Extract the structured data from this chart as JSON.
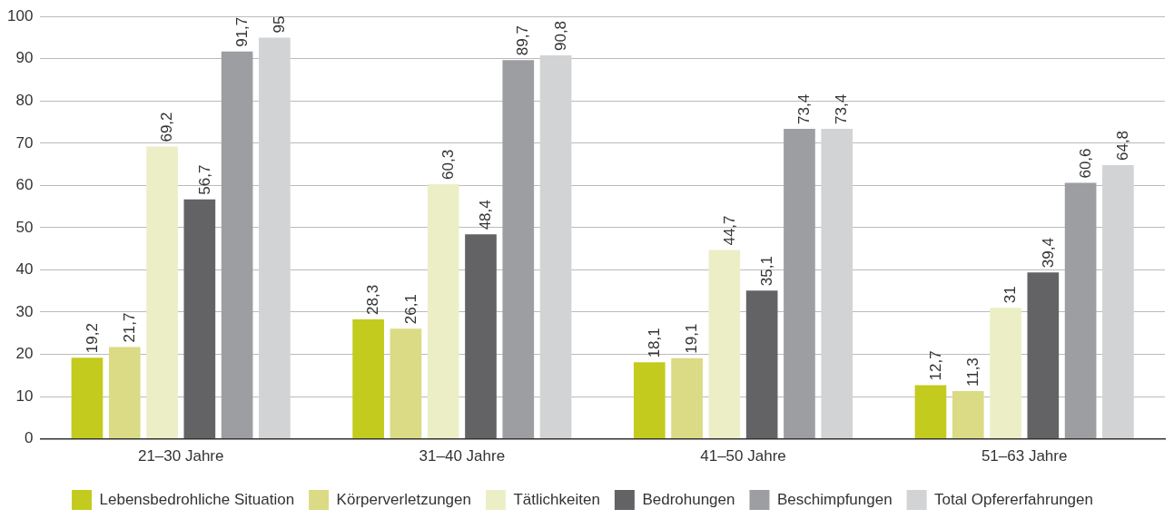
{
  "chart_data": {
    "type": "bar",
    "categories": [
      "21–30 Jahre",
      "31–40 Jahre",
      "41–50 Jahre",
      "51–63 Jahre"
    ],
    "series": [
      {
        "name": "Lebensbedrohliche Situation",
        "color": "#c3cb1f",
        "values": [
          19.2,
          28.3,
          18.1,
          12.7
        ],
        "value_labels": [
          "19,2",
          "28,3",
          "18,1",
          "12,7"
        ]
      },
      {
        "name": "Körperverletzungen",
        "color": "#dadb84",
        "values": [
          21.7,
          26.1,
          19.1,
          11.3
        ],
        "value_labels": [
          "21,7",
          "26,1",
          "19,1",
          "11,3"
        ]
      },
      {
        "name": "Tätlichkeiten",
        "color": "#ecefc6",
        "values": [
          69.2,
          60.3,
          44.7,
          31
        ],
        "value_labels": [
          "69,2",
          "60,3",
          "44,7",
          "31"
        ]
      },
      {
        "name": "Bedrohungen",
        "color": "#636365",
        "values": [
          56.7,
          48.4,
          35.1,
          39.4
        ],
        "value_labels": [
          "56,7",
          "48,4",
          "35,1",
          "39,4"
        ]
      },
      {
        "name": "Beschimpfungen",
        "color": "#9d9ea2",
        "values": [
          91.7,
          89.7,
          73.4,
          60.6
        ],
        "value_labels": [
          "91,7",
          "89,7",
          "73,4",
          "60,6"
        ]
      },
      {
        "name": "Total Opfererfahrungen",
        "color": "#d2d3d5",
        "values": [
          95,
          90.8,
          73.4,
          64.8
        ],
        "value_labels": [
          "95",
          "90,8",
          "73,4",
          "64,8"
        ]
      }
    ],
    "ylim": [
      0,
      100
    ],
    "yticks": [
      0,
      10,
      20,
      30,
      40,
      50,
      60,
      70,
      80,
      90,
      100
    ],
    "grid": "y",
    "legend": "bottom"
  }
}
